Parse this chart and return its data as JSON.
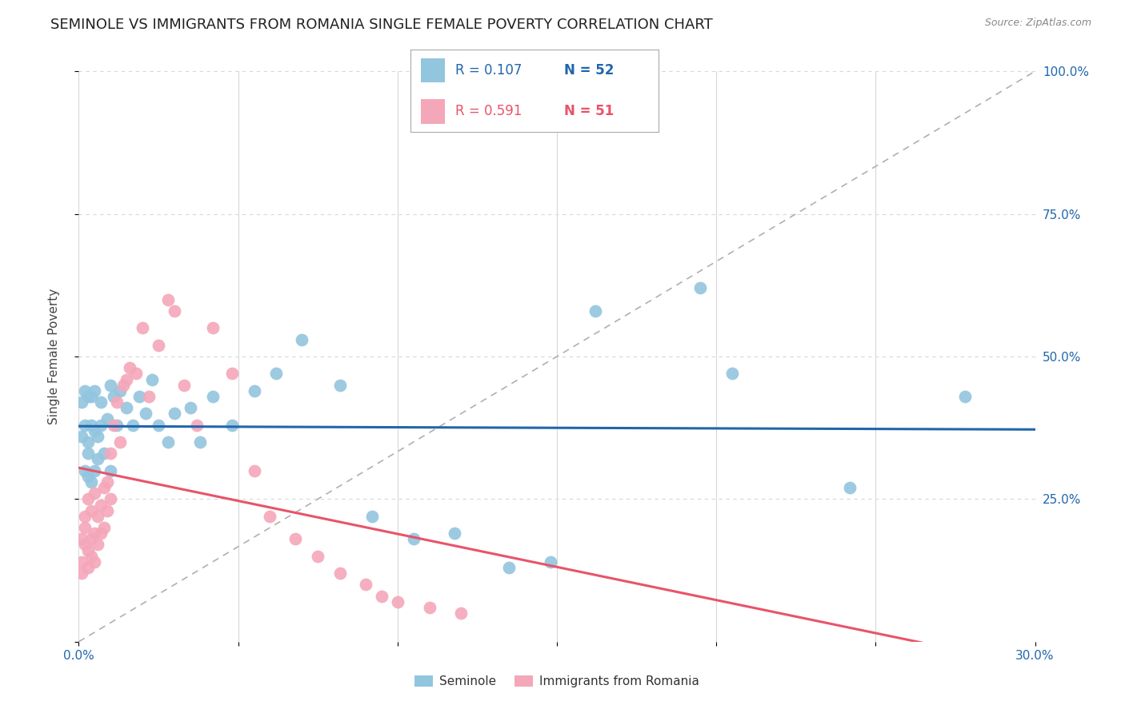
{
  "title": "SEMINOLE VS IMMIGRANTS FROM ROMANIA SINGLE FEMALE POVERTY CORRELATION CHART",
  "source": "Source: ZipAtlas.com",
  "ylabel_axis": "Single Female Poverty",
  "x_min": 0.0,
  "x_max": 0.3,
  "y_min": 0.0,
  "y_max": 1.0,
  "seminole_R": 0.107,
  "seminole_N": 52,
  "romania_R": 0.591,
  "romania_N": 51,
  "seminole_color": "#92c5de",
  "romania_color": "#f4a7b9",
  "trend_seminole_color": "#2166ac",
  "trend_romania_color": "#e8546a",
  "diagonal_color": "#b0b0b0",
  "grid_color": "#d8d8d8",
  "background_color": "#ffffff",
  "title_fontsize": 13,
  "axis_label_fontsize": 11,
  "tick_fontsize": 11,
  "seminole_x": [
    0.001,
    0.001,
    0.002,
    0.002,
    0.002,
    0.003,
    0.003,
    0.003,
    0.003,
    0.004,
    0.004,
    0.004,
    0.005,
    0.005,
    0.005,
    0.006,
    0.006,
    0.007,
    0.007,
    0.008,
    0.009,
    0.01,
    0.01,
    0.011,
    0.012,
    0.013,
    0.015,
    0.017,
    0.019,
    0.021,
    0.023,
    0.025,
    0.028,
    0.03,
    0.035,
    0.038,
    0.042,
    0.048,
    0.055,
    0.062,
    0.07,
    0.082,
    0.092,
    0.105,
    0.118,
    0.135,
    0.148,
    0.162,
    0.205,
    0.242,
    0.278,
    0.195
  ],
  "seminole_y": [
    0.42,
    0.36,
    0.38,
    0.3,
    0.44,
    0.33,
    0.35,
    0.43,
    0.29,
    0.38,
    0.43,
    0.28,
    0.37,
    0.44,
    0.3,
    0.36,
    0.32,
    0.38,
    0.42,
    0.33,
    0.39,
    0.45,
    0.3,
    0.43,
    0.38,
    0.44,
    0.41,
    0.38,
    0.43,
    0.4,
    0.46,
    0.38,
    0.35,
    0.4,
    0.41,
    0.35,
    0.43,
    0.38,
    0.44,
    0.47,
    0.53,
    0.45,
    0.22,
    0.18,
    0.19,
    0.13,
    0.14,
    0.58,
    0.47,
    0.27,
    0.43,
    0.62
  ],
  "romania_x": [
    0.001,
    0.001,
    0.001,
    0.002,
    0.002,
    0.002,
    0.003,
    0.003,
    0.003,
    0.004,
    0.004,
    0.004,
    0.005,
    0.005,
    0.005,
    0.006,
    0.006,
    0.007,
    0.007,
    0.008,
    0.008,
    0.009,
    0.009,
    0.01,
    0.01,
    0.011,
    0.012,
    0.013,
    0.014,
    0.015,
    0.016,
    0.018,
    0.02,
    0.022,
    0.025,
    0.028,
    0.03,
    0.033,
    0.037,
    0.042,
    0.048,
    0.055,
    0.06,
    0.068,
    0.075,
    0.082,
    0.09,
    0.095,
    0.1,
    0.11,
    0.12
  ],
  "romania_y": [
    0.14,
    0.18,
    0.12,
    0.2,
    0.17,
    0.22,
    0.16,
    0.25,
    0.13,
    0.18,
    0.23,
    0.15,
    0.19,
    0.26,
    0.14,
    0.22,
    0.17,
    0.24,
    0.19,
    0.27,
    0.2,
    0.23,
    0.28,
    0.25,
    0.33,
    0.38,
    0.42,
    0.35,
    0.45,
    0.46,
    0.48,
    0.47,
    0.55,
    0.43,
    0.52,
    0.6,
    0.58,
    0.45,
    0.38,
    0.55,
    0.47,
    0.3,
    0.22,
    0.18,
    0.15,
    0.12,
    0.1,
    0.08,
    0.07,
    0.06,
    0.05
  ]
}
